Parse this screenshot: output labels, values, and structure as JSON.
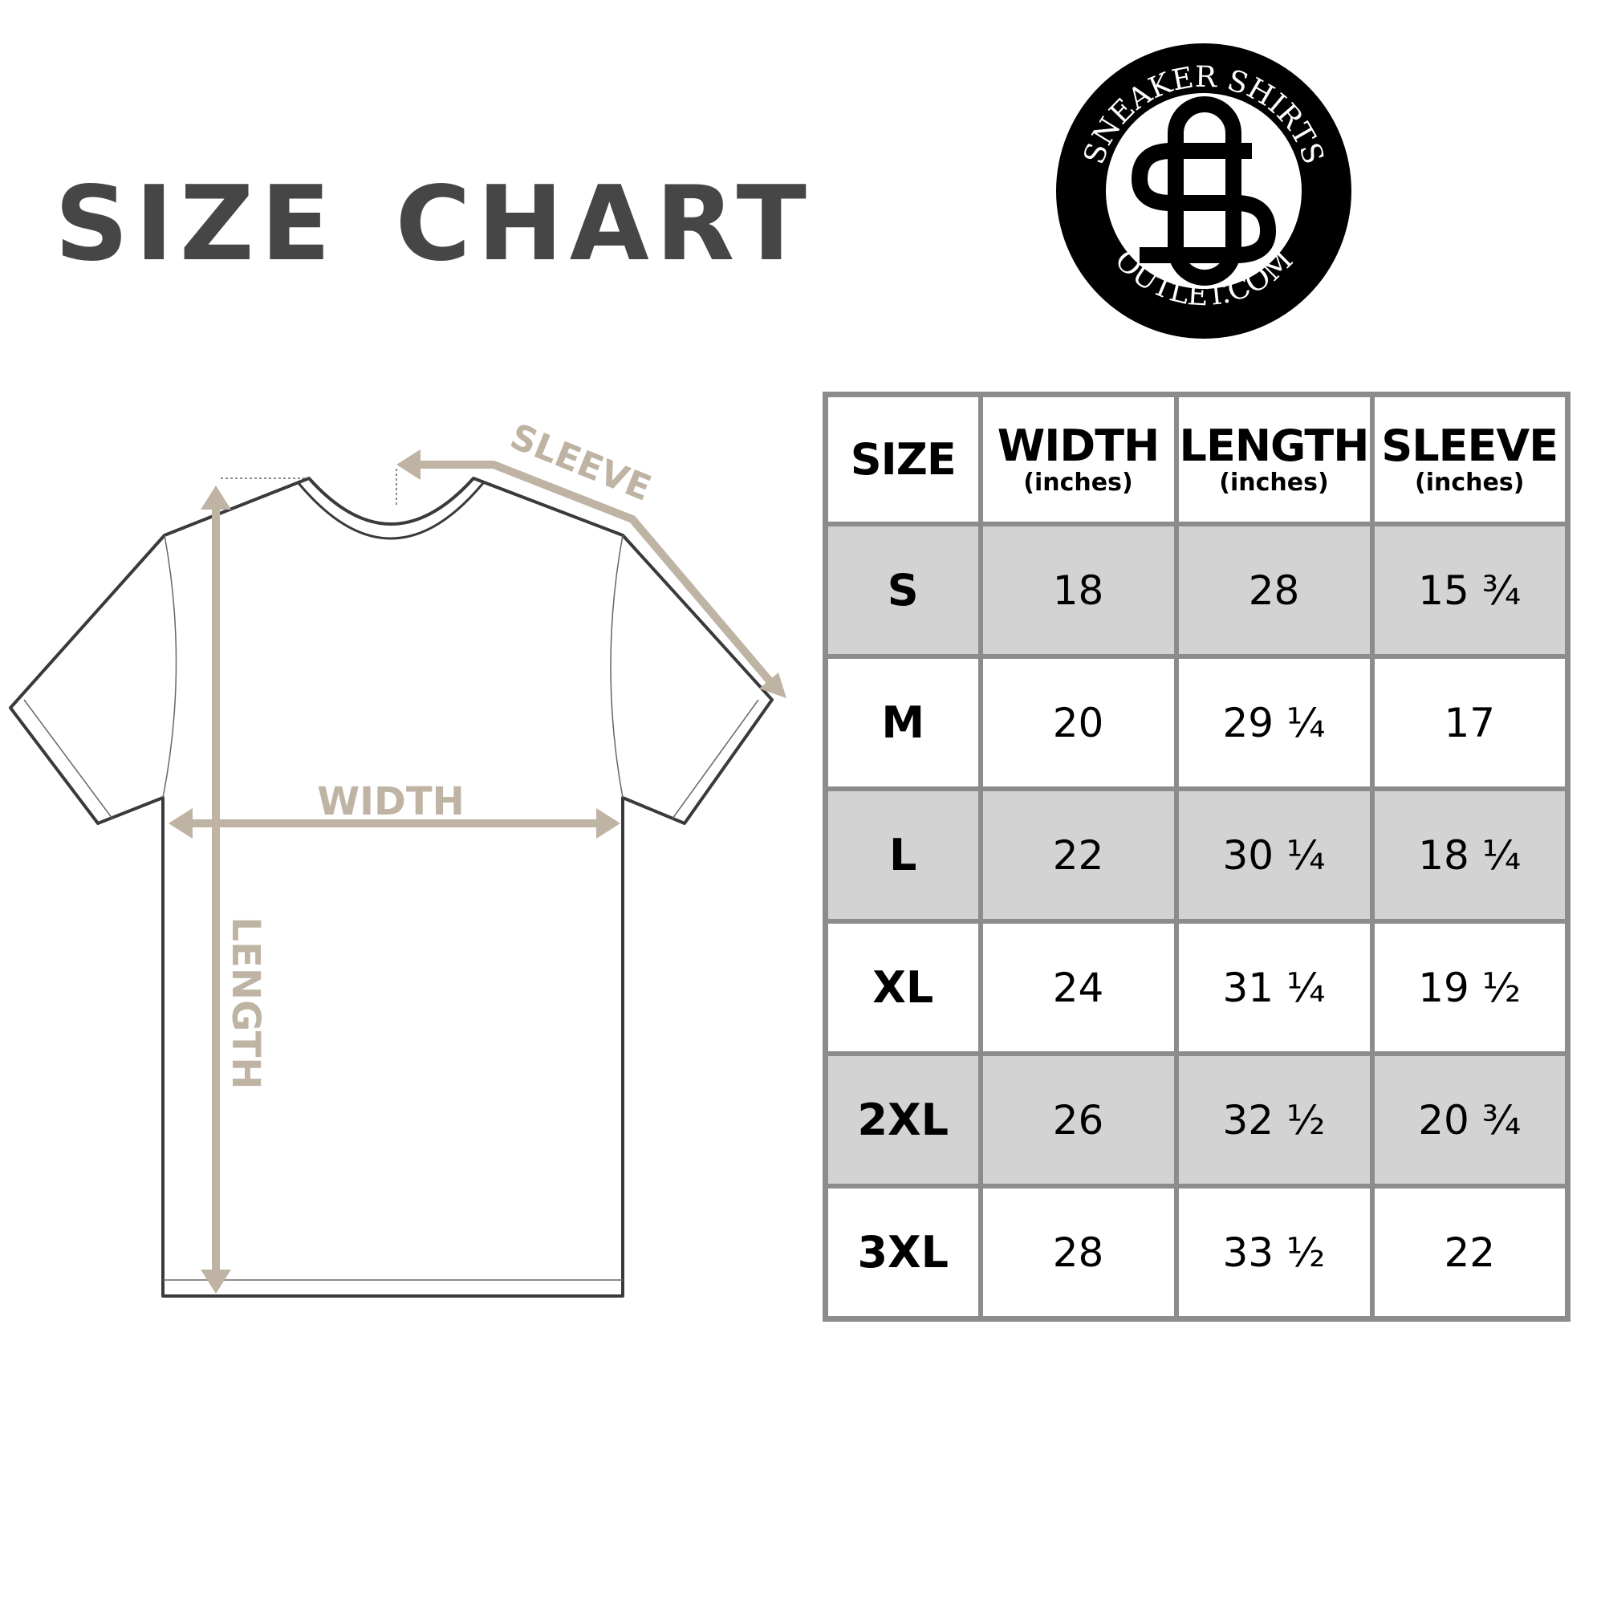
{
  "title": "SIZE CHART",
  "logo": {
    "text_top": "SNEAKER SHIRTS",
    "text_bottom": "OUTLET.COM",
    "monogram": "SO"
  },
  "diagram": {
    "width_label": "WIDTH",
    "length_label": "LENGTH",
    "sleeve_label": "SLEEVE",
    "arrow_color": "#bfb3a4"
  },
  "table": {
    "headers": [
      {
        "label": "SIZE",
        "unit": ""
      },
      {
        "label": "WIDTH",
        "unit": "(inches)"
      },
      {
        "label": "LENGTH",
        "unit": "(inches)"
      },
      {
        "label": "SLEEVE",
        "unit": "(inches)"
      }
    ],
    "rows": [
      [
        "S",
        "18",
        "28",
        "15 ¾"
      ],
      [
        "M",
        "20",
        "29 ¼",
        "17"
      ],
      [
        "L",
        "22",
        "30 ¼",
        "18 ¼"
      ],
      [
        "XL",
        "24",
        "31 ¼",
        "19 ½"
      ],
      [
        "2XL",
        "26",
        "32 ½",
        "20 ¾"
      ],
      [
        "3XL",
        "28",
        "33 ½",
        "22"
      ]
    ]
  }
}
